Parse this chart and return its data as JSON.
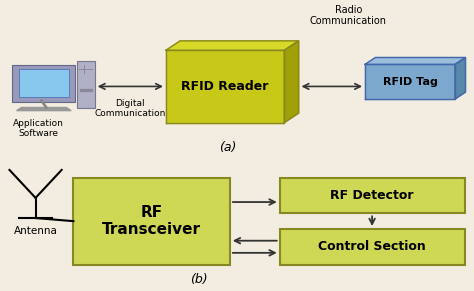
{
  "bg_color": "#f2ede0",
  "yellow_face": "#c8c818",
  "yellow_top": "#d8d828",
  "yellow_right": "#a0a008",
  "yellow_light": "#ced855",
  "blue_face": "#7ba8cc",
  "blue_top": "#9bbedd",
  "blue_right": "#5888aa",
  "box_border_yellow": "#888822",
  "box_border_blue": "#4466aa",
  "arrow_color": "#333333",
  "text_color": "#000000",
  "rfid_reader_label": "RFID Reader",
  "rfid_tag_label": "RFID Tag",
  "digital_comm_label": "Digital\nCommunication",
  "radio_comm_label": "Radio\nCommunication",
  "app_software_label": "Application\nSoftware",
  "label_a": "(a)",
  "label_b": "(b)",
  "antenna_label": "Antenna",
  "rf_transceiver_label": "RF\nTransceiver",
  "rf_detector_label": "RF Detector",
  "control_section_label": "Control Section",
  "monitor_face": "#7aaedd",
  "monitor_screen": "#88c8ee",
  "tower_face": "#aaaacc",
  "tower_stripe": "#888899"
}
